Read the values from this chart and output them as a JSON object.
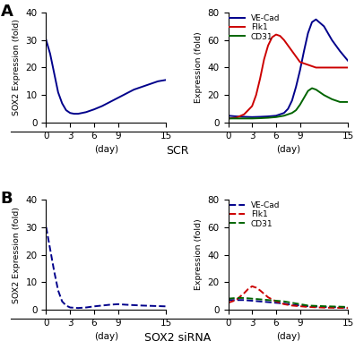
{
  "background": "#ffffff",
  "panel_A_label": "A",
  "panel_B_label": "B",
  "scr_label": "SCR",
  "sirna_label": "SOX2 siRNA",
  "x_ticks": [
    0,
    3,
    6,
    9,
    15
  ],
  "x_label": "(day)",
  "sox2_scr_x": [
    0,
    0.5,
    1,
    1.5,
    2,
    2.5,
    3,
    3.5,
    4,
    5,
    6,
    7,
    8,
    9,
    10,
    11,
    12,
    13,
    14,
    15
  ],
  "sox2_scr_y": [
    30,
    25,
    18,
    11,
    7,
    4.5,
    3.5,
    3.2,
    3.2,
    3.8,
    4.8,
    6,
    7.5,
    9,
    10.5,
    12,
    13,
    14,
    15,
    15.5
  ],
  "sox2_scr_color": "#00008B",
  "sox2_scr_ylabel": "SOX2 Expression (fold)",
  "sox2_scr_ylim": [
    0,
    40
  ],
  "vecad_scr_x": [
    0,
    1,
    2,
    3,
    4,
    5,
    6,
    7,
    7.5,
    8,
    8.5,
    9,
    9.5,
    10,
    10.5,
    11,
    12,
    13,
    14,
    15
  ],
  "vecad_scr_y": [
    5,
    4.5,
    4.2,
    4,
    4.2,
    4.5,
    5,
    7,
    10,
    16,
    26,
    38,
    52,
    65,
    73,
    75,
    70,
    60,
    52,
    45
  ],
  "vecad_scr_color": "#00008B",
  "flk1_scr_x": [
    0,
    1,
    2,
    3,
    3.5,
    4,
    4.5,
    5,
    5.5,
    6,
    6.5,
    7,
    8,
    9,
    10,
    11,
    12,
    13,
    14,
    15
  ],
  "flk1_scr_y": [
    3,
    3.5,
    6,
    12,
    20,
    32,
    46,
    56,
    62,
    64,
    63,
    60,
    52,
    44,
    42,
    40,
    40,
    40,
    40,
    40
  ],
  "flk1_scr_color": "#CC0000",
  "cd31_scr_x": [
    0,
    1,
    2,
    3,
    4,
    5,
    6,
    7,
    8,
    8.5,
    9,
    9.5,
    10,
    10.5,
    11,
    12,
    13,
    14,
    15
  ],
  "cd31_scr_y": [
    3,
    3,
    3,
    3,
    3.2,
    3.5,
    4,
    5,
    7,
    9,
    13,
    18,
    23,
    25,
    24,
    20,
    17,
    15,
    15
  ],
  "cd31_scr_color": "#006400",
  "expr_scr_ylabel": "Expression (fold)",
  "expr_scr_ylim": [
    0,
    80
  ],
  "sox2_sirna_x": [
    0,
    0.5,
    1,
    1.5,
    2,
    2.5,
    3,
    4,
    5,
    6,
    7,
    8,
    9,
    10,
    12,
    15
  ],
  "sox2_sirna_y": [
    30,
    22,
    14,
    7,
    3,
    1.5,
    0.8,
    0.6,
    0.8,
    1.2,
    1.5,
    1.8,
    2.0,
    1.8,
    1.5,
    1.2
  ],
  "sox2_sirna_color": "#00008B",
  "sox2_sirna_ylabel": "SOX2 Expression (fold)",
  "sox2_sirna_ylim": [
    0,
    40
  ],
  "vecad_sirna_x": [
    0,
    1,
    2,
    3,
    4,
    5,
    6,
    7,
    8,
    9,
    10,
    12,
    15
  ],
  "vecad_sirna_y": [
    7,
    7,
    7,
    6.5,
    6,
    5.5,
    5,
    4.5,
    3.5,
    3,
    2.5,
    2,
    1.5
  ],
  "vecad_sirna_color": "#00008B",
  "flk1_sirna_x": [
    0,
    1,
    2,
    2.5,
    3,
    3.5,
    4,
    5,
    6,
    7,
    8,
    9,
    10,
    12,
    15
  ],
  "flk1_sirna_y": [
    5,
    7,
    12,
    15,
    17,
    16,
    14,
    9,
    6,
    4,
    3,
    2.5,
    2,
    1.5,
    1.2
  ],
  "flk1_sirna_color": "#CC0000",
  "cd31_sirna_x": [
    0,
    1,
    2,
    3,
    4,
    5,
    6,
    7,
    8,
    9,
    10,
    12,
    15
  ],
  "cd31_sirna_y": [
    8,
    8.5,
    8.5,
    8,
    7.5,
    7,
    6.5,
    6,
    5,
    4,
    3,
    2.5,
    2
  ],
  "cd31_sirna_color": "#006400",
  "expr_sirna_ylabel": "Expression (fold)",
  "expr_sirna_ylim": [
    0,
    80
  ],
  "legend_vecad": "VE-Cad",
  "legend_flk1": "Flk1",
  "legend_cd31": "CD31"
}
